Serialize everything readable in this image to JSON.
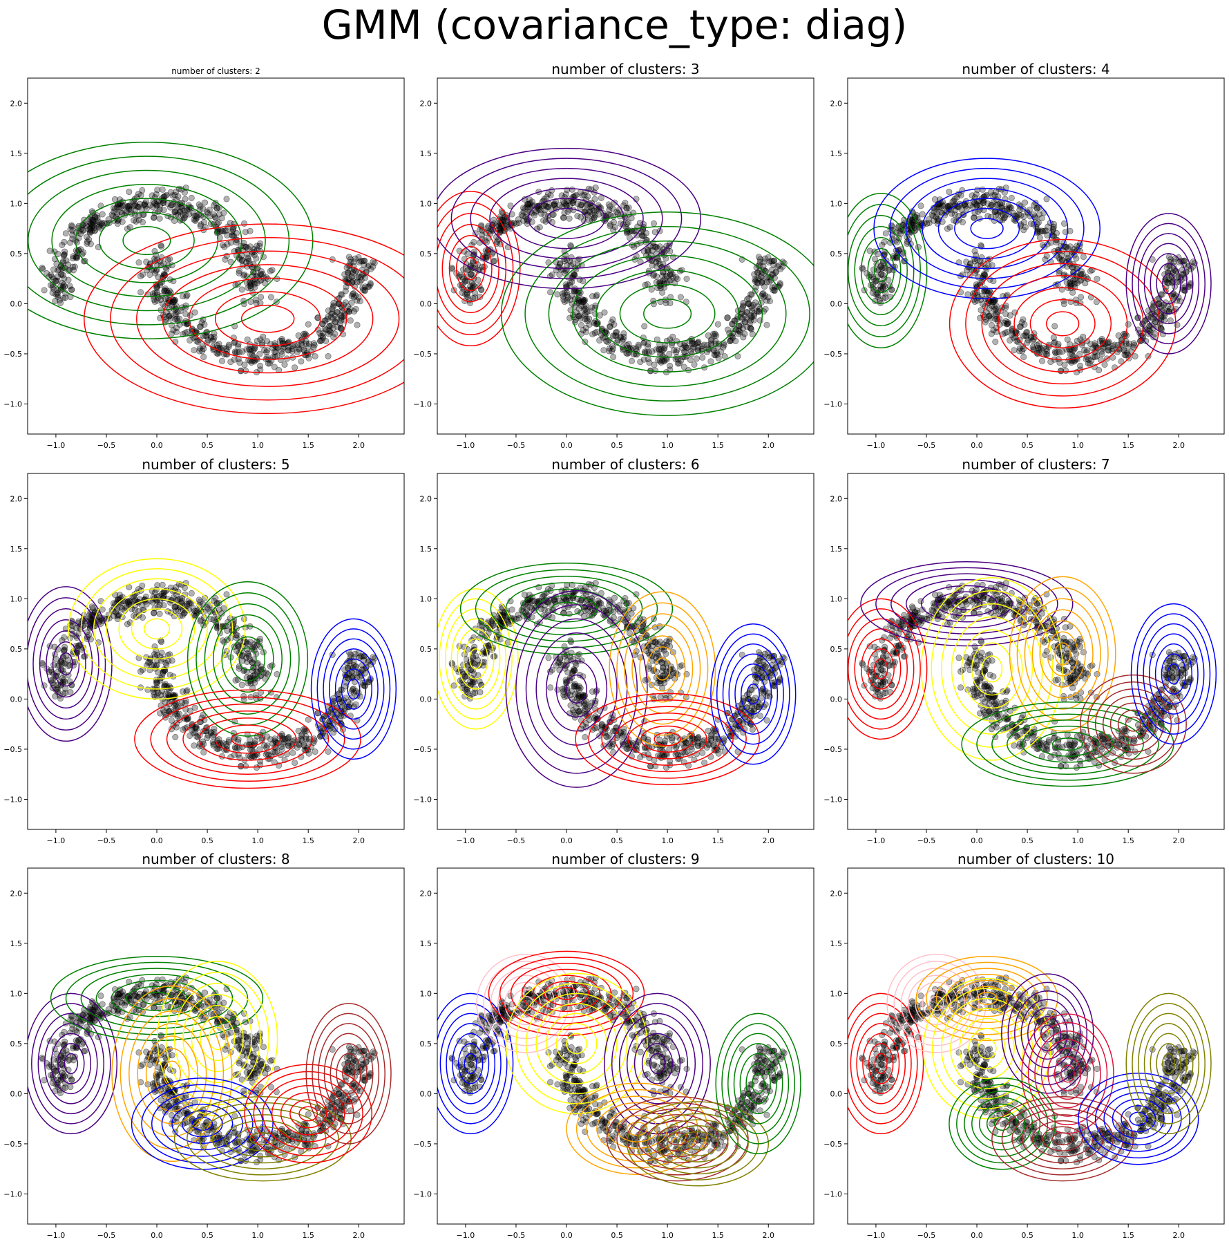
{
  "suptitle": "GMM (covariance_type: diag)",
  "colors": {
    "points": "#000000",
    "contour_palette": [
      "red",
      "green",
      "indigo",
      "blue",
      "yellow",
      "orange",
      "brown",
      "olive",
      "crimson",
      "pink"
    ]
  },
  "chart_data": [
    {
      "type": "scatter",
      "title": "number of clusters: 2",
      "xlabel": "",
      "ylabel": "",
      "xlim": [
        -1.28,
        2.45
      ],
      "ylim": [
        -1.3,
        2.25
      ],
      "xticks": [
        -1.0,
        -0.5,
        0.0,
        0.5,
        1.0,
        1.5,
        2.0
      ],
      "yticks": [
        -1.0,
        -0.5,
        0.0,
        0.5,
        1.0,
        1.5,
        2.0
      ],
      "grid": false,
      "series": [
        {
          "type": "scatter",
          "description": "two-moons data points",
          "color": "black",
          "alpha": 0.3
        },
        {
          "type": "contours",
          "components": [
            {
              "color": "green",
              "mean": [
                -0.1,
                0.63
              ],
              "sd": [
                0.47,
                0.28
              ]
            },
            {
              "color": "red",
              "mean": [
                1.1,
                -0.15
              ],
              "sd": [
                0.52,
                0.27
              ]
            }
          ]
        }
      ]
    },
    {
      "type": "scatter",
      "title": "number of clusters: 3",
      "xlabel": "",
      "ylabel": "",
      "xlim": [
        -1.28,
        2.45
      ],
      "ylim": [
        -1.3,
        2.25
      ],
      "xticks": [
        -1.0,
        -0.5,
        0.0,
        0.5,
        1.0,
        1.5,
        2.0
      ],
      "yticks": [
        -1.0,
        -0.5,
        0.0,
        0.5,
        1.0,
        1.5,
        2.0
      ],
      "grid": false,
      "series": [
        {
          "type": "scatter",
          "description": "two-moons data points",
          "color": "black",
          "alpha": 0.3
        },
        {
          "type": "contours",
          "components": [
            {
              "color": "red",
              "mean": [
                -0.95,
                0.35
              ],
              "sd": [
                0.14,
                0.22
              ]
            },
            {
              "color": "indigo",
              "mean": [
                0.0,
                0.85
              ],
              "sd": [
                0.38,
                0.2
              ]
            },
            {
              "color": "green",
              "mean": [
                1.0,
                -0.1
              ],
              "sd": [
                0.47,
                0.29
              ]
            }
          ]
        }
      ]
    },
    {
      "type": "scatter",
      "title": "number of clusters: 4",
      "xlabel": "",
      "ylabel": "",
      "xlim": [
        -1.28,
        2.45
      ],
      "ylim": [
        -1.3,
        2.25
      ],
      "xticks": [
        -1.0,
        -0.5,
        0.0,
        0.5,
        1.0,
        1.5,
        2.0
      ],
      "yticks": [
        -1.0,
        -0.5,
        0.0,
        0.5,
        1.0,
        1.5,
        2.0
      ],
      "grid": false,
      "series": [
        {
          "type": "scatter",
          "description": "two-moons data points",
          "color": "black",
          "alpha": 0.3
        },
        {
          "type": "contours",
          "components": [
            {
              "color": "green",
              "mean": [
                -0.95,
                0.33
              ],
              "sd": [
                0.13,
                0.22
              ]
            },
            {
              "color": "blue",
              "mean": [
                0.1,
                0.75
              ],
              "sd": [
                0.32,
                0.2
              ]
            },
            {
              "color": "red",
              "mean": [
                0.85,
                -0.2
              ],
              "sd": [
                0.32,
                0.24
              ]
            },
            {
              "color": "indigo",
              "mean": [
                1.9,
                0.2
              ],
              "sd": [
                0.12,
                0.2
              ]
            }
          ]
        }
      ]
    },
    {
      "type": "scatter",
      "title": "number of clusters: 5",
      "xlabel": "",
      "ylabel": "",
      "xlim": [
        -1.28,
        2.45
      ],
      "ylim": [
        -1.3,
        2.25
      ],
      "xticks": [
        -1.0,
        -0.5,
        0.0,
        0.5,
        1.0,
        1.5,
        2.0
      ],
      "yticks": [
        -1.0,
        -0.5,
        0.0,
        0.5,
        1.0,
        1.5,
        2.0
      ],
      "grid": false,
      "series": [
        {
          "type": "scatter",
          "description": "two-moons data points",
          "color": "black",
          "alpha": 0.3
        },
        {
          "type": "contours",
          "components": [
            {
              "color": "indigo",
              "mean": [
                -0.9,
                0.35
              ],
              "sd": [
                0.13,
                0.22
              ]
            },
            {
              "color": "yellow",
              "mean": [
                0.0,
                0.7
              ],
              "sd": [
                0.25,
                0.2
              ]
            },
            {
              "color": "green",
              "mean": [
                0.9,
                0.4
              ],
              "sd": [
                0.17,
                0.22
              ]
            },
            {
              "color": "red",
              "mean": [
                0.9,
                -0.4
              ],
              "sd": [
                0.32,
                0.14
              ]
            },
            {
              "color": "blue",
              "mean": [
                1.95,
                0.1
              ],
              "sd": [
                0.12,
                0.2
              ]
            }
          ]
        }
      ]
    },
    {
      "type": "scatter",
      "title": "number of clusters: 6",
      "xlabel": "",
      "ylabel": "",
      "xlim": [
        -1.28,
        2.45
      ],
      "ylim": [
        -1.3,
        2.25
      ],
      "xticks": [
        -1.0,
        -0.5,
        0.0,
        0.5,
        1.0,
        1.5,
        2.0
      ],
      "yticks": [
        -1.0,
        -0.5,
        0.0,
        0.5,
        1.0,
        1.5,
        2.0
      ],
      "grid": false,
      "series": [
        {
          "type": "scatter",
          "description": "two-moons data points",
          "color": "black",
          "alpha": 0.3
        },
        {
          "type": "contours",
          "components": [
            {
              "color": "yellow",
              "mean": [
                -0.9,
                0.4
              ],
              "sd": [
                0.12,
                0.2
              ]
            },
            {
              "color": "green",
              "mean": [
                0.0,
                0.9
              ],
              "sd": [
                0.3,
                0.13
              ]
            },
            {
              "color": "indigo",
              "mean": [
                0.1,
                0.1
              ],
              "sd": [
                0.2,
                0.28
              ]
            },
            {
              "color": "orange",
              "mean": [
                0.95,
                0.3
              ],
              "sd": [
                0.15,
                0.22
              ]
            },
            {
              "color": "red",
              "mean": [
                1.0,
                -0.4
              ],
              "sd": [
                0.26,
                0.13
              ]
            },
            {
              "color": "blue",
              "mean": [
                1.85,
                0.05
              ],
              "sd": [
                0.12,
                0.2
              ]
            }
          ]
        }
      ]
    },
    {
      "type": "scatter",
      "title": "number of clusters: 7",
      "xlabel": "",
      "ylabel": "",
      "xlim": [
        -1.28,
        2.45
      ],
      "ylim": [
        -1.3,
        2.25
      ],
      "xticks": [
        -1.0,
        -0.5,
        0.0,
        0.5,
        1.0,
        1.5,
        2.0
      ],
      "yticks": [
        -1.0,
        -0.5,
        0.0,
        0.5,
        1.0,
        1.5,
        2.0
      ],
      "grid": false,
      "series": [
        {
          "type": "scatter",
          "description": "two-moons data points",
          "color": "black",
          "alpha": 0.3
        },
        {
          "type": "contours",
          "components": [
            {
              "color": "red",
              "mean": [
                -0.95,
                0.3
              ],
              "sd": [
                0.13,
                0.2
              ]
            },
            {
              "color": "indigo",
              "mean": [
                -0.1,
                0.95
              ],
              "sd": [
                0.3,
                0.12
              ]
            },
            {
              "color": "yellow",
              "mean": [
                0.15,
                0.3
              ],
              "sd": [
                0.2,
                0.26
              ]
            },
            {
              "color": "orange",
              "mean": [
                0.85,
                0.45
              ],
              "sd": [
                0.15,
                0.22
              ]
            },
            {
              "color": "green",
              "mean": [
                0.9,
                -0.45
              ],
              "sd": [
                0.3,
                0.12
              ]
            },
            {
              "color": "brown",
              "mean": [
                1.55,
                -0.25
              ],
              "sd": [
                0.15,
                0.14
              ]
            },
            {
              "color": "blue",
              "mean": [
                1.95,
                0.25
              ],
              "sd": [
                0.12,
                0.2
              ]
            }
          ]
        }
      ]
    },
    {
      "type": "scatter",
      "title": "number of clusters: 8",
      "xlabel": "",
      "ylabel": "",
      "xlim": [
        -1.28,
        2.45
      ],
      "ylim": [
        -1.3,
        2.25
      ],
      "xticks": [
        -1.0,
        -0.5,
        0.0,
        0.5,
        1.0,
        1.5,
        2.0
      ],
      "yticks": [
        -1.0,
        -0.5,
        0.0,
        0.5,
        1.0,
        1.5,
        2.0
      ],
      "grid": false,
      "series": [
        {
          "type": "scatter",
          "description": "two-moons data points",
          "color": "black",
          "alpha": 0.3
        },
        {
          "type": "contours",
          "components": [
            {
              "color": "indigo",
              "mean": [
                -0.85,
                0.3
              ],
              "sd": [
                0.13,
                0.2
              ]
            },
            {
              "color": "green",
              "mean": [
                0.0,
                0.95
              ],
              "sd": [
                0.3,
                0.12
              ]
            },
            {
              "color": "yellow",
              "mean": [
                0.6,
                0.55
              ],
              "sd": [
                0.17,
                0.22
              ]
            },
            {
              "color": "orange",
              "mean": [
                0.15,
                0.2
              ],
              "sd": [
                0.17,
                0.25
              ]
            },
            {
              "color": "blue",
              "mean": [
                0.45,
                -0.3
              ],
              "sd": [
                0.2,
                0.13
              ]
            },
            {
              "color": "olive",
              "mean": [
                1.05,
                -0.45
              ],
              "sd": [
                0.25,
                0.12
              ]
            },
            {
              "color": "red",
              "mean": [
                1.5,
                -0.2
              ],
              "sd": [
                0.18,
                0.14
              ]
            },
            {
              "color": "brown",
              "mean": [
                1.9,
                0.2
              ],
              "sd": [
                0.12,
                0.2
              ]
            }
          ]
        }
      ]
    },
    {
      "type": "scatter",
      "title": "number of clusters: 9",
      "xlabel": "",
      "ylabel": "",
      "xlim": [
        -1.28,
        2.45
      ],
      "ylim": [
        -1.3,
        2.25
      ],
      "xticks": [
        -1.0,
        -0.5,
        0.0,
        0.5,
        1.0,
        1.5,
        2.0
      ],
      "yticks": [
        -1.0,
        -0.5,
        0.0,
        0.5,
        1.0,
        1.5,
        2.0
      ],
      "grid": false,
      "series": [
        {
          "type": "scatter",
          "description": "two-moons data points",
          "color": "black",
          "alpha": 0.3
        },
        {
          "type": "contours",
          "components": [
            {
              "color": "blue",
              "mean": [
                -0.95,
                0.3
              ],
              "sd": [
                0.12,
                0.2
              ]
            },
            {
              "color": "pink",
              "mean": [
                -0.4,
                0.9
              ],
              "sd": [
                0.14,
                0.14
              ]
            },
            {
              "color": "red",
              "mean": [
                0.0,
                1.0
              ],
              "sd": [
                0.22,
                0.12
              ]
            },
            {
              "color": "yellow",
              "mean": [
                0.1,
                0.5
              ],
              "sd": [
                0.2,
                0.2
              ]
            },
            {
              "color": "indigo",
              "mean": [
                0.9,
                0.3
              ],
              "sd": [
                0.15,
                0.2
              ]
            },
            {
              "color": "orange",
              "mean": [
                0.7,
                -0.35
              ],
              "sd": [
                0.2,
                0.13
              ]
            },
            {
              "color": "brown",
              "mean": [
                1.1,
                -0.45
              ],
              "sd": [
                0.2,
                0.12
              ]
            },
            {
              "color": "olive",
              "mean": [
                1.3,
                -0.5
              ],
              "sd": [
                0.2,
                0.12
              ]
            },
            {
              "color": "green",
              "mean": [
                1.9,
                0.1
              ],
              "sd": [
                0.12,
                0.2
              ]
            }
          ]
        }
      ]
    },
    {
      "type": "scatter",
      "title": "number of clusters: 10",
      "xlabel": "",
      "ylabel": "",
      "xlim": [
        -1.28,
        2.45
      ],
      "ylim": [
        -1.3,
        2.25
      ],
      "xticks": [
        -1.0,
        -0.5,
        0.0,
        0.5,
        1.0,
        1.5,
        2.0
      ],
      "yticks": [
        -1.0,
        -0.5,
        0.0,
        0.5,
        1.0,
        1.5,
        2.0
      ],
      "grid": false,
      "series": [
        {
          "type": "scatter",
          "description": "two-moons data points",
          "color": "black",
          "alpha": 0.3
        },
        {
          "type": "contours",
          "components": [
            {
              "color": "red",
              "mean": [
                -0.95,
                0.3
              ],
              "sd": [
                0.12,
                0.2
              ]
            },
            {
              "color": "pink",
              "mean": [
                -0.4,
                0.9
              ],
              "sd": [
                0.14,
                0.14
              ]
            },
            {
              "color": "orange",
              "mean": [
                0.1,
                0.95
              ],
              "sd": [
                0.2,
                0.12
              ]
            },
            {
              "color": "yellow",
              "mean": [
                0.1,
                0.45
              ],
              "sd": [
                0.18,
                0.2
              ]
            },
            {
              "color": "indigo",
              "mean": [
                0.7,
                0.6
              ],
              "sd": [
                0.13,
                0.17
              ]
            },
            {
              "color": "crimson",
              "mean": [
                0.9,
                0.2
              ],
              "sd": [
                0.13,
                0.17
              ]
            },
            {
              "color": "green",
              "mean": [
                0.25,
                -0.3
              ],
              "sd": [
                0.15,
                0.13
              ]
            },
            {
              "color": "brown",
              "mean": [
                0.85,
                -0.45
              ],
              "sd": [
                0.2,
                0.12
              ]
            },
            {
              "color": "blue",
              "mean": [
                1.6,
                -0.25
              ],
              "sd": [
                0.17,
                0.13
              ]
            },
            {
              "color": "olive",
              "mean": [
                1.9,
                0.3
              ],
              "sd": [
                0.12,
                0.2
              ]
            }
          ]
        }
      ]
    }
  ]
}
